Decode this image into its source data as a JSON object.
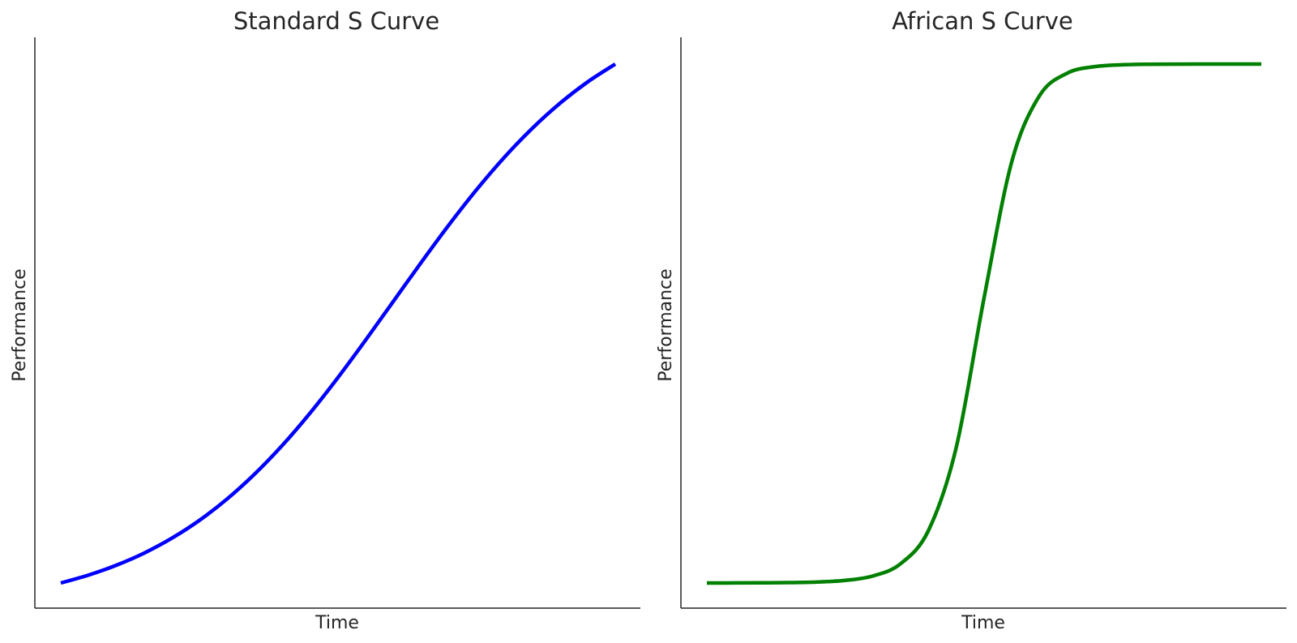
{
  "chart_data": [
    {
      "type": "line",
      "title": "Standard S Curve",
      "xlabel": "Time",
      "ylabel": "Performance",
      "xticks": "hidden",
      "yticks": "hidden",
      "grid": false,
      "x": [
        0,
        0.5,
        1,
        1.5,
        2,
        2.5,
        3,
        3.5,
        4,
        4.5,
        5,
        5.5,
        6,
        6.5,
        7,
        7.5,
        8,
        8.5,
        9,
        9.5,
        10
      ],
      "series": [
        {
          "color": "#0000ff",
          "values": [
            0.0474,
            0.0601,
            0.0759,
            0.0953,
            0.1192,
            0.148,
            0.1824,
            0.2227,
            0.2689,
            0.3208,
            0.3775,
            0.4378,
            0.5,
            0.5622,
            0.6225,
            0.6792,
            0.7311,
            0.7773,
            0.8176,
            0.852,
            0.8808
          ]
        }
      ]
    },
    {
      "type": "line",
      "title": "African S Curve",
      "xlabel": "Time",
      "ylabel": "Performance",
      "xticks": "hidden",
      "yticks": "hidden",
      "grid": false,
      "x": [
        0,
        0.5,
        1,
        1.5,
        2,
        2.5,
        3,
        3.5,
        4,
        4.5,
        5,
        5.5,
        6,
        6.5,
        7,
        7.5,
        8,
        8.5,
        9,
        9.5,
        10
      ],
      "series": [
        {
          "color": "#008000",
          "values": [
            0.0474,
            0.0475,
            0.0477,
            0.0481,
            0.0492,
            0.0521,
            0.0601,
            0.0822,
            0.1418,
            0.2903,
            0.5564,
            0.7994,
            0.9169,
            0.9571,
            0.9688,
            0.9721,
            0.973,
            0.9732,
            0.9733,
            0.9733,
            0.9733
          ]
        }
      ]
    }
  ]
}
